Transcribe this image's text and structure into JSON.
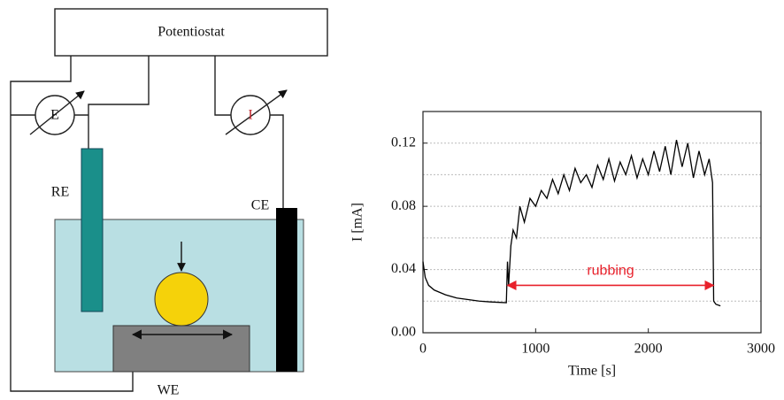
{
  "diagram": {
    "potentiostat": "Potentiostat",
    "voltmeter": "E",
    "ammeter": "I",
    "reference_electrode": "RE",
    "counter_electrode": "CE",
    "working_electrode": "WE"
  },
  "chart_data": {
    "type": "line",
    "xlabel": "Time [s]",
    "ylabel": "I [mA]",
    "x": [
      0,
      20,
      50,
      100,
      200,
      300,
      400,
      500,
      600,
      740,
      750,
      760,
      780,
      800,
      830,
      860,
      900,
      950,
      1000,
      1050,
      1100,
      1150,
      1200,
      1250,
      1300,
      1350,
      1400,
      1450,
      1500,
      1550,
      1600,
      1650,
      1700,
      1750,
      1800,
      1850,
      1900,
      1950,
      2000,
      2050,
      2100,
      2150,
      2200,
      2250,
      2300,
      2350,
      2400,
      2450,
      2500,
      2540,
      2570,
      2580,
      2600,
      2640
    ],
    "series": [
      {
        "color": "#000000",
        "values": [
          0.045,
          0.035,
          0.03,
          0.027,
          0.024,
          0.022,
          0.021,
          0.02,
          0.0195,
          0.019,
          0.045,
          0.03,
          0.055,
          0.065,
          0.06,
          0.08,
          0.07,
          0.085,
          0.08,
          0.09,
          0.085,
          0.097,
          0.088,
          0.1,
          0.09,
          0.104,
          0.095,
          0.1,
          0.092,
          0.106,
          0.097,
          0.11,
          0.096,
          0.108,
          0.1,
          0.112,
          0.098,
          0.11,
          0.1,
          0.115,
          0.102,
          0.118,
          0.1,
          0.122,
          0.105,
          0.12,
          0.098,
          0.115,
          0.1,
          0.11,
          0.095,
          0.02,
          0.018,
          0.017
        ]
      }
    ],
    "xlim": [
      0,
      3000
    ],
    "xticks": [
      0,
      1000,
      2000,
      3000
    ],
    "ylim": [
      0,
      0.14
    ],
    "yticks": [
      {
        "value": 0,
        "label": "0.00"
      },
      {
        "value": 0.04,
        "label": "0.04"
      },
      {
        "value": 0.08,
        "label": "0.08"
      },
      {
        "value": 0.12,
        "label": "0.12"
      }
    ],
    "ygrid": [
      0.02,
      0.04,
      0.06,
      0.08,
      0.1,
      0.12
    ],
    "annotation": {
      "text": "rubbing",
      "x": [
        750,
        2580
      ],
      "y": 0.03,
      "color": "#e8212b"
    }
  }
}
